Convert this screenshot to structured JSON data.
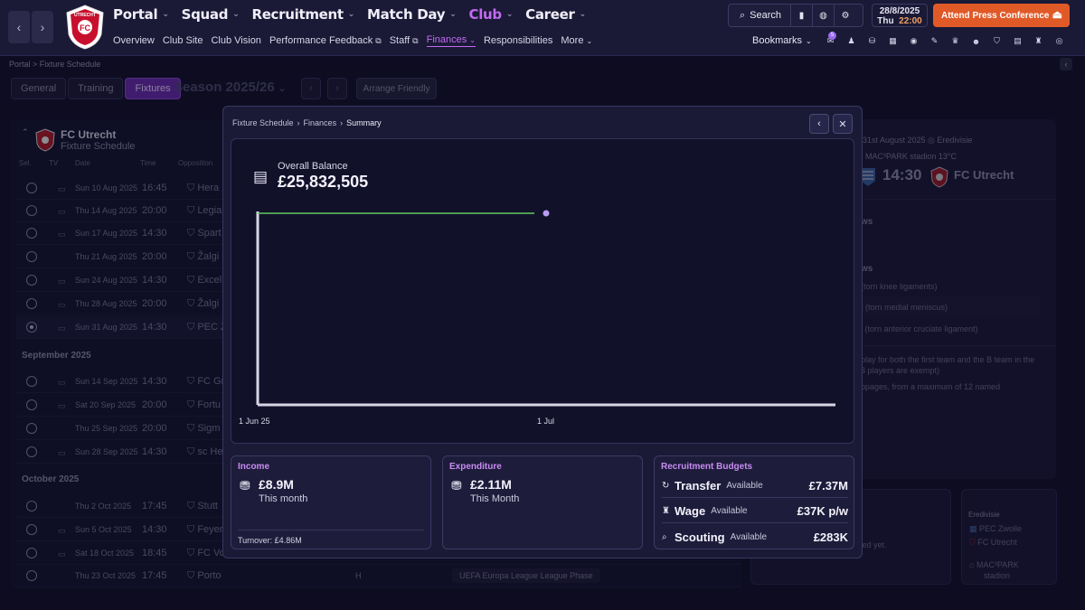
{
  "header": {
    "nav": [
      {
        "label": "Portal",
        "active": false
      },
      {
        "label": "Squad",
        "active": false
      },
      {
        "label": "Recruitment",
        "active": false
      },
      {
        "label": "Match Day",
        "active": false
      },
      {
        "label": "Club",
        "active": true
      },
      {
        "label": "Career",
        "active": false
      }
    ],
    "subnav": {
      "overview": "Overview",
      "club_site": "Club Site",
      "club_vision": "Club Vision",
      "performance_feedback": "Performance Feedback",
      "staff": "Staff",
      "finances": "Finances",
      "responsibilities": "Responsibilities",
      "more": "More"
    },
    "search_label": "Search",
    "date": "28/8/2025",
    "day": "Thu",
    "time": "22:00",
    "press_button": "Attend Press Conference",
    "bookmarks_label": "Bookmarks",
    "notification_count": "5",
    "club_name": "UTRECHT",
    "club_initial": "FC"
  },
  "page": {
    "breadcrumb": "Portal  >  Fixture Schedule",
    "tabs": [
      {
        "label": "General",
        "active": false
      },
      {
        "label": "Training",
        "active": false
      },
      {
        "label": "Fixtures",
        "active": true
      }
    ],
    "season": "Season 2025/26",
    "arrange_friendly": "Arrange Friendly",
    "team": "FC Utrecht",
    "schedule_title": "Fixture Schedule",
    "columns": {
      "sel": "Sel.",
      "tv": "TV",
      "date": "Date",
      "time": "Time",
      "opposition": "Opposition"
    },
    "fixtures": [
      {
        "date": "Sun 10 Aug 2025",
        "time": "16:45",
        "opp": "Hera",
        "tv": true,
        "sel": false
      },
      {
        "date": "Thu 14 Aug 2025",
        "time": "20:00",
        "opp": "Legia",
        "tv": true,
        "sel": false
      },
      {
        "date": "Sun 17 Aug 2025",
        "time": "14:30",
        "opp": "Spart",
        "tv": true,
        "sel": false
      },
      {
        "date": "Thu 21 Aug 2025",
        "time": "20:00",
        "opp": "Žalgi",
        "tv": false,
        "sel": false
      },
      {
        "date": "Sun 24 Aug 2025",
        "time": "14:30",
        "opp": "Excel",
        "tv": true,
        "sel": false
      },
      {
        "date": "Thu 28 Aug 2025",
        "time": "20:00",
        "opp": "Žalgi",
        "tv": true,
        "sel": false
      },
      {
        "date": "Sun 31 Aug 2025",
        "time": "14:30",
        "opp": "PEC Z",
        "tv": true,
        "sel": true
      }
    ],
    "month_sep": "September 2025",
    "fixtures_sep": [
      {
        "date": "Sun 14 Sep 2025",
        "time": "14:30",
        "opp": "FC Gr",
        "tv": true
      },
      {
        "date": "Sat 20 Sep 2025",
        "time": "20:00",
        "opp": "Fortu",
        "tv": true
      },
      {
        "date": "Thu 25 Sep 2025",
        "time": "20:00",
        "opp": "Sigm",
        "tv": false
      },
      {
        "date": "Sun 28 Sep 2025",
        "time": "14:30",
        "opp": "sc He",
        "tv": true
      }
    ],
    "month_oct": "October 2025",
    "fixtures_oct": [
      {
        "date": "Thu 2 Oct 2025",
        "time": "17:45",
        "opp": "Stutt",
        "tv": false
      },
      {
        "date": "Sun 5 Oct 2025",
        "time": "14:30",
        "opp": "Feyer",
        "tv": true
      },
      {
        "date": "Sat 18 Oct 2025",
        "time": "18:45",
        "opp": "FC Vo",
        "tv": true
      },
      {
        "date": "Thu 23 Oct 2025",
        "time": "17:45",
        "opp": "Porto",
        "tv": false
      }
    ],
    "last_venue": "H",
    "last_comp": "UEFA Europa League League Phase",
    "next_match": {
      "date": "31st August 2025",
      "competition": "Eredivisie",
      "stadium": "MAC³PARK stadion 13°C",
      "kickoff": "14:30",
      "home_team": "FC Utrecht"
    },
    "right_snippets": {
      "news_heading_1": "ws",
      "news_heading_2": "ws",
      "injury_1": "(torn knee ligaments)",
      "injury_2": "t (torn medial meniscus)",
      "injury_3": "l (torn anterior cruciate ligament)",
      "rule_1": "play for both the first team and the B team in the",
      "rule_2": "3 players are exempt)",
      "rule_3": "ppages, from a maximum of 12 named",
      "not_played": "yed yet."
    },
    "league_card": {
      "title": "Eredivisie",
      "team_1": "PEC Zwolle",
      "team_2": "FC Utrecht",
      "venue_1": "MAC³PARK",
      "venue_2": "stadion"
    }
  },
  "modal": {
    "breadcrumb": [
      "Fixture Schedule",
      "Finances",
      "Summary"
    ],
    "balance_label": "Overall Balance",
    "balance_value": "£25,832,505",
    "income": {
      "title": "Income",
      "amount": "£8.9M",
      "period": "This month",
      "turnover": "Turnover: £4.86M"
    },
    "expenditure": {
      "title": "Expenditure",
      "amount": "£2.11M",
      "period": "This Month"
    },
    "budgets": {
      "title": "Recruitment Budgets",
      "rows": [
        {
          "name": "Transfer",
          "avail": "Available",
          "value": "£7.37M",
          "icon": "refresh-icon"
        },
        {
          "name": "Wage",
          "avail": "Available",
          "value": "£37K p/w",
          "icon": "piggy-bank-icon"
        },
        {
          "name": "Scouting",
          "avail": "Available",
          "value": "£283K",
          "icon": "magnifier-icon"
        }
      ]
    }
  },
  "chart_data": {
    "type": "line",
    "x_tick_labels": [
      "1 Jun 25",
      "1 Jul"
    ],
    "series": [
      {
        "values": [
          25832505,
          25832505
        ],
        "color": "#5fcb5f"
      }
    ],
    "projection_point": 25832505,
    "projection_color": "#b89cf4",
    "grid": false
  }
}
